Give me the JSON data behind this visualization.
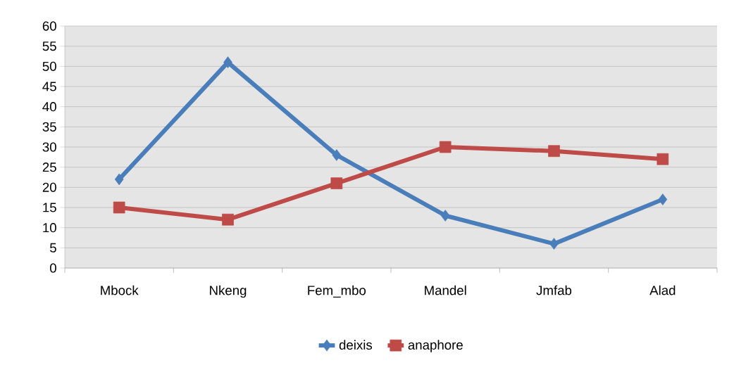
{
  "chart_data": {
    "type": "line",
    "categories": [
      "Mbock",
      "Nkeng",
      "Fem_mbo",
      "Mandel",
      "Jmfab",
      "Alad"
    ],
    "series": [
      {
        "name": "deixis",
        "color": "#4a7ebb",
        "marker": "diamond",
        "values": [
          22,
          51,
          28,
          13,
          6,
          17
        ]
      },
      {
        "name": "anaphore",
        "color": "#be4b48",
        "marker": "square",
        "values": [
          15,
          12,
          21,
          30,
          29,
          27
        ]
      }
    ],
    "ylim": [
      0,
      60
    ],
    "yticks": [
      0,
      5,
      10,
      15,
      20,
      25,
      30,
      35,
      40,
      45,
      50,
      55,
      60
    ],
    "grid": "y",
    "legend": "bottom",
    "line_style": "solid"
  }
}
